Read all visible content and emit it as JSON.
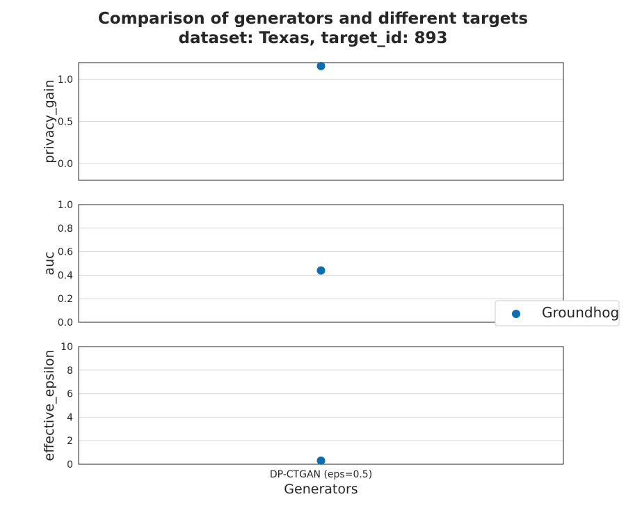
{
  "title": {
    "line1": "Comparison of generators and different targets",
    "line2": "dataset: Texas, target_id: 893"
  },
  "colors": {
    "series": "#0f6eb0",
    "grid": "#d6d6d6",
    "frame": "#262626"
  },
  "chart_data": [
    {
      "type": "scatter",
      "ylabel": "privacy_gain",
      "categories": [
        "DP-CTGAN (eps=0.5)"
      ],
      "ylim": [
        -0.2,
        1.2
      ],
      "yticks": [
        0.0,
        0.5,
        1.0
      ],
      "yticklabels": [
        "0.0",
        "0.5",
        "1.0"
      ],
      "grid": true,
      "series": [
        {
          "name": "Groundhog",
          "values": [
            1.16
          ]
        }
      ]
    },
    {
      "type": "scatter",
      "ylabel": "auc",
      "categories": [
        "DP-CTGAN (eps=0.5)"
      ],
      "ylim": [
        0.0,
        1.0
      ],
      "yticks": [
        0.0,
        0.2,
        0.4,
        0.6,
        0.8,
        1.0
      ],
      "yticklabels": [
        "0.0",
        "0.2",
        "0.4",
        "0.6",
        "0.8",
        "1.0"
      ],
      "grid": true,
      "series": [
        {
          "name": "Groundhog",
          "values": [
            0.44
          ]
        }
      ]
    },
    {
      "type": "scatter",
      "ylabel": "effective_epsilon",
      "xlabel": "Generators",
      "categories": [
        "DP-CTGAN (eps=0.5)"
      ],
      "ylim": [
        0,
        10
      ],
      "yticks": [
        0,
        2,
        4,
        6,
        8,
        10
      ],
      "yticklabels": [
        "0",
        "2",
        "4",
        "6",
        "8",
        "10"
      ],
      "grid": true,
      "series": [
        {
          "name": "Groundhog",
          "values": [
            0.3
          ]
        }
      ]
    }
  ],
  "legend": {
    "position": "right",
    "entries": [
      "Groundhog"
    ]
  }
}
